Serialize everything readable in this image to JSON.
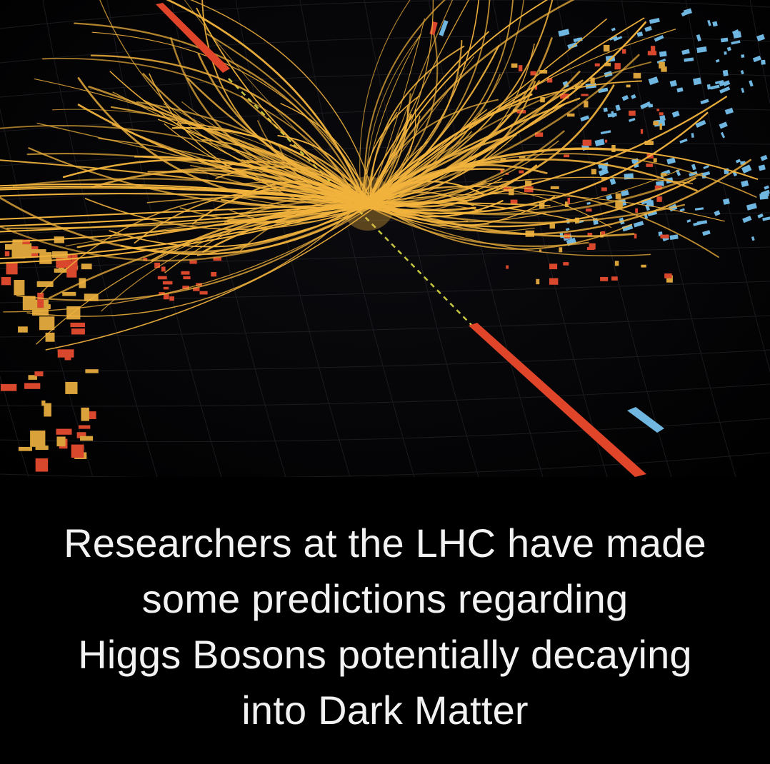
{
  "caption": {
    "lines": [
      "Researchers at the LHC have made",
      "some predictions regarding",
      "Higgs Bosons potentially decaying",
      "into Dark Matter"
    ]
  },
  "colors": {
    "background": "#000000",
    "tracks": "#f2b33d",
    "muon_tracks": "#e0452a",
    "em_deposits": "#d9a23a",
    "hadronic_deposits": "#d9472d",
    "calorimeter_cells": "#6fb6e0",
    "missing_energy": "#e8e84a",
    "caption_text": "#f2f2f2"
  }
}
